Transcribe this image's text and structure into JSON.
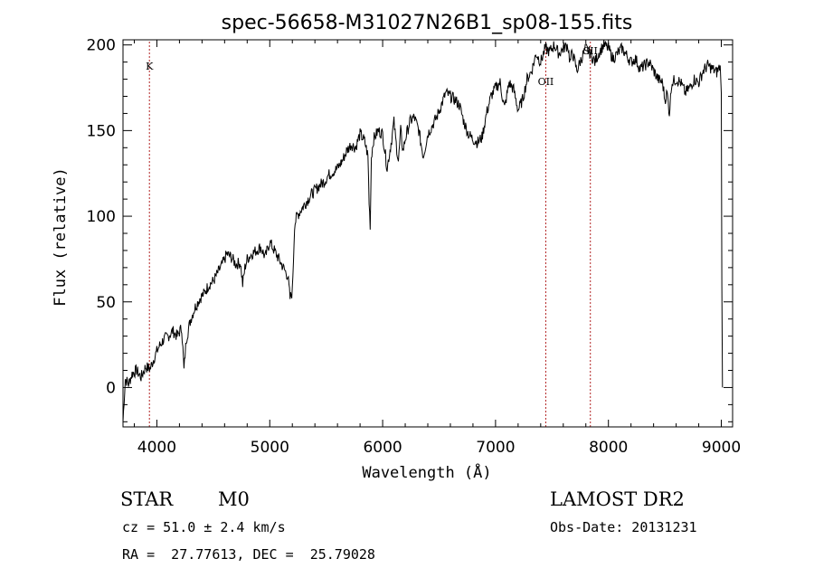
{
  "chart_data": {
    "type": "line",
    "title": "spec-56658-M31027N26B1_sp08-155.fits",
    "xlabel": "Wavelength (Å)",
    "ylabel": "Flux (relative)",
    "xlim": [
      3700,
      9100
    ],
    "ylim": [
      -23,
      203
    ],
    "xticks": [
      4000,
      5000,
      6000,
      7000,
      8000,
      9000
    ],
    "yticks": [
      0,
      50,
      100,
      150,
      200
    ],
    "grid": false,
    "series": [
      {
        "x": [
          3700,
          3720,
          3750,
          3780,
          3820,
          3860,
          3900,
          3940,
          3980,
          4020,
          4060,
          4100,
          4140,
          4180,
          4220,
          4240,
          4260,
          4300,
          4340,
          4380,
          4420,
          4460,
          4500,
          4540,
          4580,
          4620,
          4660,
          4700,
          4740,
          4760,
          4780,
          4800,
          4840,
          4880,
          4920,
          4960,
          5000,
          5040,
          5080,
          5120,
          5160,
          5180,
          5200,
          5220,
          5240,
          5280,
          5320,
          5360,
          5400,
          5440,
          5480,
          5520,
          5560,
          5600,
          5640,
          5680,
          5720,
          5760,
          5800,
          5840,
          5870,
          5880,
          5890,
          5900,
          5920,
          5960,
          6000,
          6040,
          6080,
          6100,
          6120,
          6140,
          6160,
          6180,
          6200,
          6240,
          6280,
          6320,
          6360,
          6400,
          6440,
          6480,
          6520,
          6560,
          6600,
          6640,
          6680,
          6720,
          6760,
          6800,
          6840,
          6880,
          6920,
          6960,
          7000,
          7040,
          7060,
          7080,
          7120,
          7160,
          7200,
          7240,
          7280,
          7320,
          7360,
          7400,
          7440,
          7480,
          7520,
          7560,
          7600,
          7640,
          7660,
          7680,
          7720,
          7760,
          7800,
          7840,
          7880,
          7920,
          7960,
          8000,
          8040,
          8080,
          8120,
          8160,
          8200,
          8240,
          8280,
          8320,
          8360,
          8400,
          8440,
          8480,
          8500,
          8520,
          8540,
          8560,
          8600,
          8640,
          8680,
          8720,
          8760,
          8800,
          8840,
          8880,
          8920,
          8960,
          8990,
          9000,
          9005,
          9010
        ],
        "y": [
          -20,
          5,
          2,
          8,
          10,
          6,
          12,
          11,
          18,
          24,
          28,
          30,
          33,
          30,
          35,
          10,
          28,
          40,
          47,
          52,
          55,
          60,
          62,
          67,
          72,
          78,
          76,
          72,
          73,
          60,
          70,
          75,
          78,
          80,
          82,
          76,
          85,
          80,
          75,
          70,
          65,
          52,
          56,
          95,
          100,
          104,
          108,
          112,
          115,
          118,
          120,
          124,
          126,
          128,
          132,
          138,
          142,
          140,
          148,
          144,
          135,
          108,
          95,
          135,
          145,
          150,
          148,
          128,
          145,
          155,
          142,
          132,
          150,
          138,
          145,
          155,
          158,
          150,
          135,
          148,
          153,
          158,
          165,
          172,
          170,
          168,
          165,
          155,
          148,
          145,
          143,
          146,
          160,
          170,
          175,
          178,
          170,
          163,
          178,
          174,
          162,
          168,
          180,
          185,
          195,
          190,
          198,
          196,
          200,
          195,
          198,
          200,
          190,
          196,
          185,
          192,
          198,
          195,
          190,
          196,
          200,
          198,
          192,
          195,
          198,
          194,
          190,
          192,
          186,
          188,
          190,
          185,
          180,
          178,
          168,
          172,
          160,
          178,
          180,
          178,
          172,
          175,
          180,
          178,
          185,
          188,
          186,
          184,
          188,
          172,
          60,
          0
        ]
      }
    ],
    "lines": [
      {
        "label": "K",
        "x": 3934
      },
      {
        "label": "OII",
        "x": 7445
      },
      {
        "label": "SII",
        "x": 7840
      }
    ]
  },
  "info": {
    "object": "STAR",
    "subclass": "M0",
    "survey": "LAMOST DR2",
    "cz": "cz = 51.0 ± 2.4 km/s",
    "obsdate": "Obs-Date: 20131231",
    "radec": "RA =  27.77613, DEC =  25.79028"
  }
}
